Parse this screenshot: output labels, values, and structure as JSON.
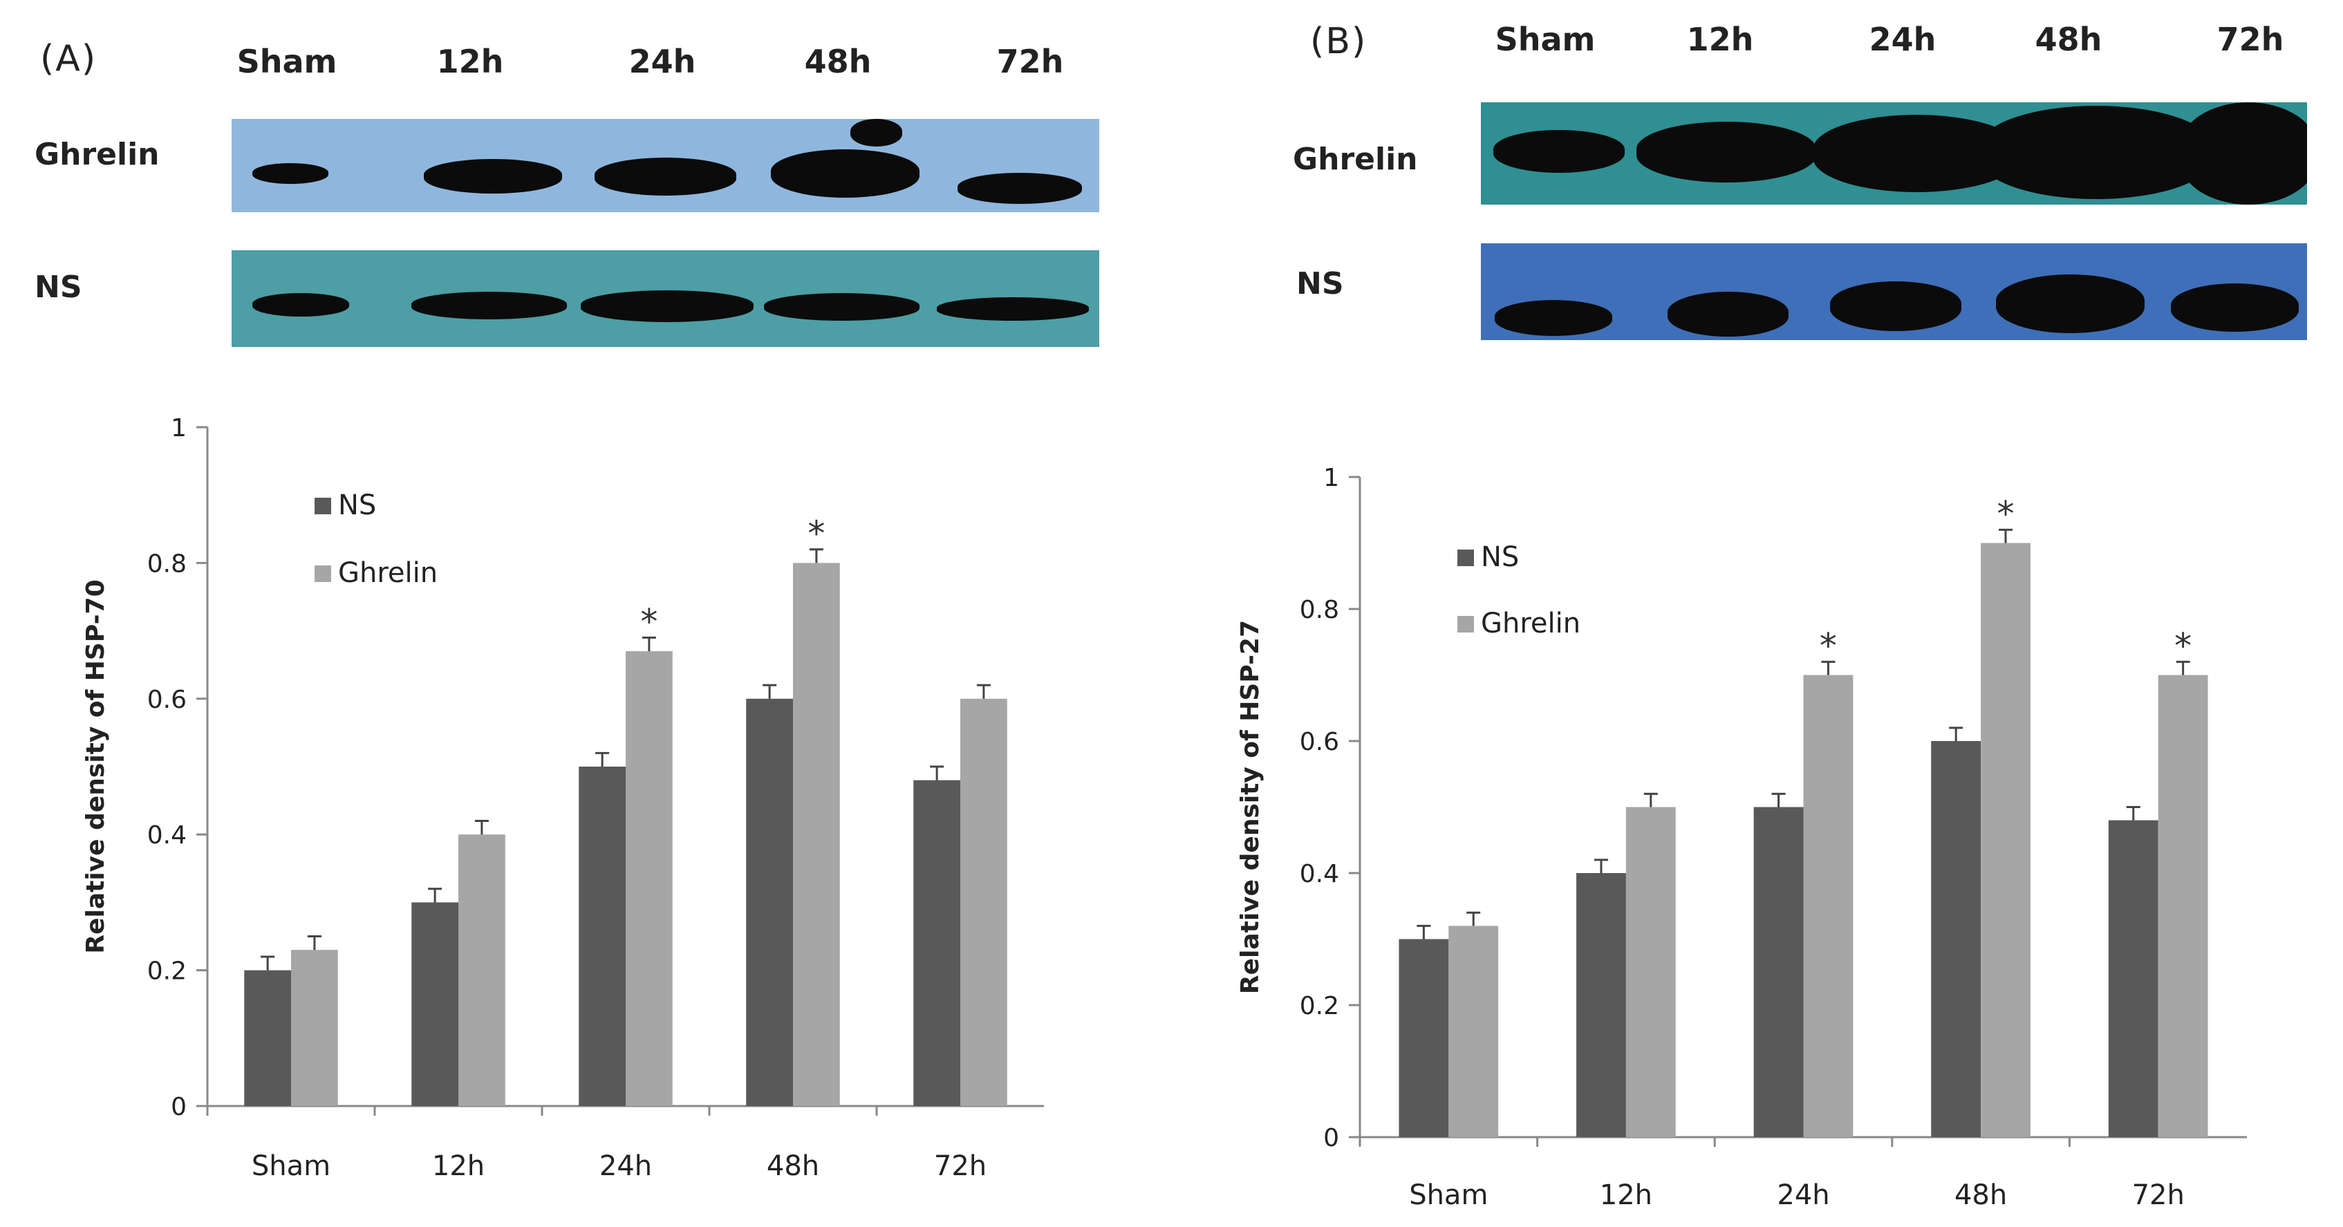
{
  "panels": [
    {
      "id": "A",
      "label": "(A)",
      "blot": {
        "lanes": [
          "Sham",
          "12h",
          "24h",
          "48h",
          "72h"
        ],
        "rows": [
          {
            "label": "Ghrelin",
            "color": "#8fb7de"
          },
          {
            "label": "NS",
            "color": "#4d9ea5"
          }
        ]
      },
      "chart": {
        "ylabel": "Relative density of HSP-70",
        "ylim": [
          0,
          1
        ],
        "yticks": [
          "0",
          "0.2",
          "0.4",
          "0.6",
          "0.8",
          "1"
        ]
      }
    },
    {
      "id": "B",
      "label": "(B)",
      "blot": {
        "lanes": [
          "Sham",
          "12h",
          "24h",
          "48h",
          "72h"
        ],
        "rows": [
          {
            "label": "Ghrelin",
            "color": "#2f8f93"
          },
          {
            "label": "NS",
            "color": "#3f6fb8"
          }
        ]
      },
      "chart": {
        "ylabel": "Relative density of HSP-27",
        "ylim": [
          0,
          1
        ],
        "yticks": [
          "0",
          "0.2",
          "0.4",
          "0.6",
          "0.8",
          "1"
        ]
      }
    }
  ],
  "chart_data": [
    {
      "type": "bar",
      "title": "",
      "xlabel": "",
      "ylabel": "Relative density of HSP-70",
      "ylim": [
        0,
        1
      ],
      "categories": [
        "Sham",
        "12h",
        "24h",
        "48h",
        "72h"
      ],
      "series": [
        {
          "name": "NS",
          "color": "#595959",
          "values": [
            0.2,
            0.3,
            0.5,
            0.6,
            0.48
          ],
          "errors": [
            0.02,
            0.02,
            0.02,
            0.02,
            0.02
          ]
        },
        {
          "name": "Ghrelin",
          "color": "#a6a6a6",
          "values": [
            0.23,
            0.4,
            0.67,
            0.8,
            0.6
          ],
          "errors": [
            0.02,
            0.02,
            0.02,
            0.02,
            0.02
          ]
        }
      ],
      "significance": {
        "marker": "*",
        "series": "Ghrelin",
        "categories": [
          "24h",
          "48h"
        ]
      },
      "legend": "top-left"
    },
    {
      "type": "bar",
      "title": "",
      "xlabel": "",
      "ylabel": "Relative density of HSP-27",
      "ylim": [
        0,
        1
      ],
      "categories": [
        "Sham",
        "12h",
        "24h",
        "48h",
        "72h"
      ],
      "series": [
        {
          "name": "NS",
          "color": "#595959",
          "values": [
            0.3,
            0.4,
            0.5,
            0.6,
            0.48
          ],
          "errors": [
            0.02,
            0.02,
            0.02,
            0.02,
            0.02
          ]
        },
        {
          "name": "Ghrelin",
          "color": "#a6a6a6",
          "values": [
            0.32,
            0.5,
            0.7,
            0.9,
            0.7
          ],
          "errors": [
            0.02,
            0.02,
            0.02,
            0.02,
            0.02
          ]
        }
      ],
      "significance": {
        "marker": "*",
        "series": "Ghrelin",
        "categories": [
          "24h",
          "48h",
          "72h"
        ]
      },
      "legend": "top-left"
    }
  ]
}
